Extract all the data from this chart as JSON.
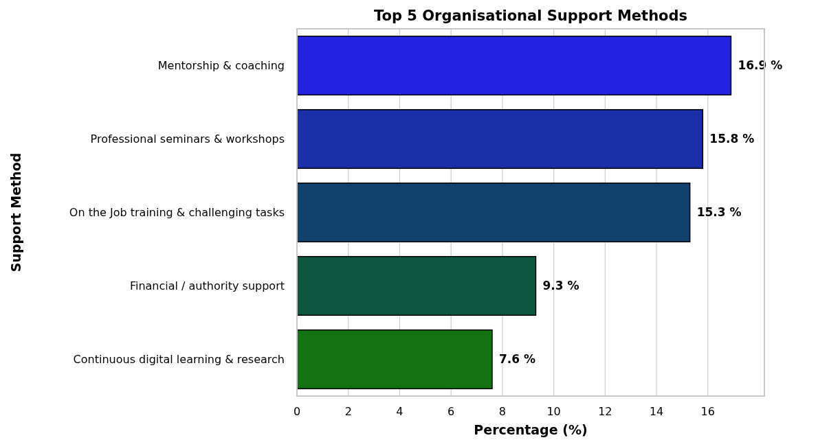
{
  "chart_data": {
    "type": "bar",
    "orientation": "horizontal",
    "title": "Top 5 Organisational Support Methods",
    "xlabel": "Percentage (%)",
    "ylabel": "Support Method",
    "categories": [
      "Mentorship & coaching",
      "Professional seminars & workshops",
      "On the Job training & challenging tasks",
      "Financial / authority support",
      "Continuous digital learning & research"
    ],
    "values": [
      16.9,
      15.8,
      15.3,
      9.3,
      7.6
    ],
    "colors": [
      "#2222e0",
      "#1a2fa8",
      "#11426e",
      "#0e5540",
      "#137313"
    ],
    "value_labels": [
      "16.9 %",
      "15.8 %",
      "15.3 %",
      "9.3 %",
      "7.6 %"
    ],
    "xlim": [
      0,
      18.2
    ],
    "xticks": [
      0,
      2,
      4,
      6,
      8,
      10,
      12,
      14,
      16
    ],
    "grid": "x"
  }
}
